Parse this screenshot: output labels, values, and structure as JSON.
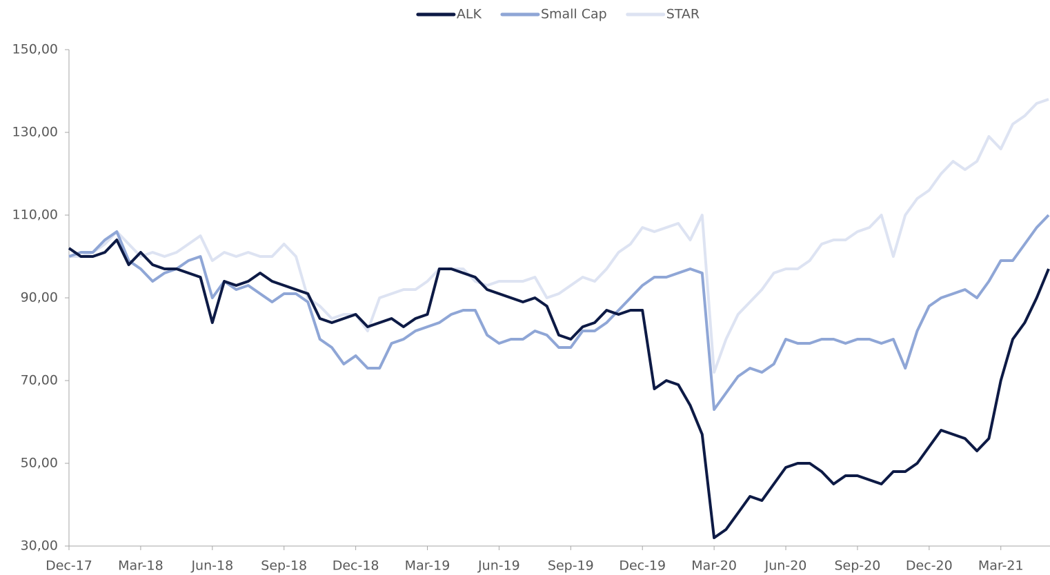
{
  "chart_data": {
    "type": "line",
    "categories": [
      "Dec-17",
      null,
      null,
      null,
      null,
      null,
      "Mar-18",
      null,
      null,
      null,
      null,
      null,
      "Jun-18",
      null,
      null,
      null,
      null,
      null,
      "Sep-18",
      null,
      null,
      null,
      null,
      null,
      "Dec-18",
      null,
      null,
      null,
      null,
      null,
      "Mar-19",
      null,
      null,
      null,
      null,
      null,
      "Jun-19",
      null,
      null,
      null,
      null,
      null,
      "Sep-19",
      null,
      null,
      null,
      null,
      null,
      "Dec-19",
      null,
      null,
      null,
      null,
      null,
      "Mar-20",
      null,
      null,
      null,
      null,
      null,
      "Jun-20",
      null,
      null,
      null,
      null,
      null,
      "Sep-20",
      null,
      null,
      null,
      null,
      null,
      "Dec-20",
      null,
      null,
      null,
      null,
      null,
      "Mar-21",
      null,
      null,
      null,
      null
    ],
    "series": [
      {
        "name": "ALK",
        "color": "#0d1a45",
        "values": [
          102,
          100,
          100,
          101,
          104,
          98,
          101,
          98,
          97,
          97,
          96,
          95,
          84,
          94,
          93,
          94,
          96,
          94,
          93,
          92,
          91,
          85,
          84,
          85,
          86,
          83,
          84,
          85,
          83,
          85,
          86,
          97,
          97,
          96,
          95,
          92,
          91,
          90,
          89,
          90,
          88,
          81,
          80,
          83,
          84,
          87,
          86,
          87,
          87,
          68,
          70,
          69,
          64,
          57,
          32,
          34,
          38,
          42,
          41,
          45,
          49,
          50,
          50,
          48,
          45,
          47,
          47,
          46,
          45,
          48,
          48,
          50,
          54,
          58,
          57,
          56,
          53,
          56,
          70,
          80,
          84,
          90,
          97
        ]
      },
      {
        "name": "Small Cap",
        "color": "#8fa6d6",
        "values": [
          100,
          101,
          101,
          104,
          106,
          99,
          97,
          94,
          96,
          97,
          99,
          100,
          90,
          94,
          92,
          93,
          91,
          89,
          91,
          91,
          89,
          80,
          78,
          74,
          76,
          73,
          73,
          79,
          80,
          82,
          83,
          84,
          86,
          87,
          87,
          81,
          79,
          80,
          80,
          82,
          81,
          78,
          78,
          82,
          82,
          84,
          87,
          90,
          93,
          95,
          95,
          96,
          97,
          96,
          63,
          67,
          71,
          73,
          72,
          74,
          80,
          79,
          79,
          80,
          80,
          79,
          80,
          80,
          79,
          80,
          73,
          82,
          88,
          90,
          91,
          92,
          90,
          94,
          99,
          99,
          103,
          107,
          110
        ]
      },
      {
        "name": "STAR",
        "color": "#dde3f2",
        "values": [
          100,
          100,
          101,
          103,
          106,
          103,
          100,
          101,
          100,
          101,
          103,
          105,
          99,
          101,
          100,
          101,
          100,
          100,
          103,
          100,
          90,
          88,
          85,
          86,
          86,
          82,
          90,
          91,
          92,
          92,
          94,
          97,
          97,
          97,
          94,
          93,
          94,
          94,
          94,
          95,
          90,
          91,
          93,
          95,
          94,
          97,
          101,
          103,
          107,
          106,
          107,
          108,
          104,
          110,
          72,
          80,
          86,
          89,
          92,
          96,
          97,
          97,
          99,
          103,
          104,
          104,
          106,
          107,
          110,
          100,
          110,
          114,
          116,
          120,
          123,
          121,
          123,
          129,
          126,
          132,
          134,
          137,
          138
        ]
      }
    ],
    "ylim": [
      30,
      150
    ],
    "yticks": [
      {
        "value": 30,
        "label": "30,00"
      },
      {
        "value": 50,
        "label": "50,00"
      },
      {
        "value": 70,
        "label": "70,00"
      },
      {
        "value": 90,
        "label": "90,00"
      },
      {
        "value": 110,
        "label": "110,00"
      },
      {
        "value": 130,
        "label": "130,00"
      },
      {
        "value": 150,
        "label": "150,00"
      }
    ],
    "grid": false,
    "legend": "top"
  }
}
